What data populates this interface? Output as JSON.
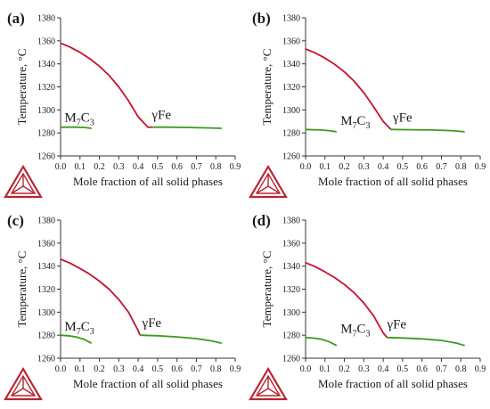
{
  "colors": {
    "liquid_solid": "#c8102e",
    "solid": "#3c9a1c",
    "axis": "#333333",
    "logo": "#b9242f"
  },
  "chart_data": [
    {
      "panel": "(a)",
      "type": "line",
      "xlabel": "Mole fraction of all solid phases",
      "ylabel": "Temperature, °C",
      "xlim": [
        0.0,
        0.9
      ],
      "ylim": [
        1260,
        1380
      ],
      "xticks": [
        "0.0",
        "0.1",
        "0.2",
        "0.3",
        "0.4",
        "0.5",
        "0.6",
        "0.7",
        "0.8",
        "0.9"
      ],
      "yticks": [
        "1260",
        "1280",
        "1300",
        "1320",
        "1340",
        "1360",
        "1380"
      ],
      "grid": false,
      "annotations": [
        {
          "text": "M",
          "sub": "7",
          "text2": "C",
          "sub2": "3",
          "at_x": 0.02,
          "at_y": 1290
        },
        {
          "text": "γFe",
          "at_x": 0.47,
          "at_y": 1292
        }
      ],
      "series": [
        {
          "color": "red",
          "x": [
            0.0,
            0.05,
            0.1,
            0.15,
            0.2,
            0.25,
            0.3,
            0.35,
            0.4,
            0.45,
            0.47
          ],
          "y": [
            1358,
            1354.5,
            1350,
            1344.5,
            1338,
            1330,
            1320,
            1308,
            1294,
            1285,
            1285
          ]
        },
        {
          "color": "green",
          "x": [
            0.0,
            0.04,
            0.08,
            0.12,
            0.16
          ],
          "y": [
            1285,
            1285,
            1285,
            1284.8,
            1284
          ]
        },
        {
          "color": "green",
          "x": [
            0.47,
            0.55,
            0.65,
            0.75,
            0.83
          ],
          "y": [
            1285,
            1285,
            1284.8,
            1284.4,
            1284
          ]
        }
      ]
    },
    {
      "panel": "(b)",
      "type": "line",
      "xlabel": "Mole fraction of all solid phases",
      "ylabel": "Temperature, °C",
      "xlim": [
        0.0,
        0.9
      ],
      "ylim": [
        1260,
        1380
      ],
      "xticks": [
        "0.0",
        "0.1",
        "0.2",
        "0.3",
        "0.4",
        "0.5",
        "0.6",
        "0.7",
        "0.8",
        "0.9"
      ],
      "yticks": [
        "1260",
        "1280",
        "1300",
        "1320",
        "1340",
        "1360",
        "1380"
      ],
      "grid": false,
      "annotations": [
        {
          "text": "M",
          "sub": "7",
          "text2": "C",
          "sub2": "3",
          "at_x": 0.18,
          "at_y": 1287
        },
        {
          "text": "γFe",
          "at_x": 0.45,
          "at_y": 1290
        }
      ],
      "series": [
        {
          "color": "red",
          "x": [
            0.0,
            0.05,
            0.1,
            0.15,
            0.2,
            0.25,
            0.3,
            0.35,
            0.4,
            0.44
          ],
          "y": [
            1353,
            1349.5,
            1345,
            1339.5,
            1333,
            1325,
            1315,
            1303,
            1290,
            1283
          ]
        },
        {
          "color": "green",
          "x": [
            0.0,
            0.04,
            0.08,
            0.12,
            0.16
          ],
          "y": [
            1283,
            1282.8,
            1282.5,
            1282,
            1281
          ]
        },
        {
          "color": "green",
          "x": [
            0.44,
            0.55,
            0.65,
            0.75,
            0.82
          ],
          "y": [
            1283,
            1282.8,
            1282.5,
            1282,
            1281
          ]
        }
      ]
    },
    {
      "panel": "(c)",
      "type": "line",
      "xlabel": "Mole fraction of all solid phases",
      "ylabel": "Temperature, °C",
      "xlim": [
        0.0,
        0.9
      ],
      "ylim": [
        1260,
        1380
      ],
      "xticks": [
        "0.0",
        "0.1",
        "0.2",
        "0.3",
        "0.4",
        "0.5",
        "0.6",
        "0.7",
        "0.8",
        "0.9"
      ],
      "yticks": [
        "1260",
        "1280",
        "1300",
        "1320",
        "1340",
        "1360",
        "1380"
      ],
      "grid": false,
      "annotations": [
        {
          "text": "M",
          "sub": "7",
          "text2": "C",
          "sub2": "3",
          "at_x": 0.02,
          "at_y": 1284
        },
        {
          "text": "γFe",
          "at_x": 0.42,
          "at_y": 1287
        }
      ],
      "series": [
        {
          "color": "red",
          "x": [
            0.0,
            0.05,
            0.1,
            0.15,
            0.2,
            0.25,
            0.3,
            0.35,
            0.4,
            0.41
          ],
          "y": [
            1346,
            1342.5,
            1338,
            1333,
            1327,
            1320,
            1311,
            1300,
            1284,
            1280
          ]
        },
        {
          "color": "green",
          "x": [
            0.0,
            0.04,
            0.08,
            0.12,
            0.16
          ],
          "y": [
            1280,
            1279.5,
            1278.5,
            1276.5,
            1273
          ]
        },
        {
          "color": "green",
          "x": [
            0.41,
            0.5,
            0.6,
            0.7,
            0.78,
            0.83
          ],
          "y": [
            1280,
            1279.5,
            1278.5,
            1277,
            1275,
            1273
          ]
        }
      ]
    },
    {
      "panel": "(d)",
      "type": "line",
      "xlabel": "Mole fraction of all solid phases",
      "ylabel": "Temperature, °C",
      "xlim": [
        0.0,
        0.9
      ],
      "ylim": [
        1260,
        1380
      ],
      "xticks": [
        "0.0",
        "0.1",
        "0.2",
        "0.3",
        "0.4",
        "0.5",
        "0.6",
        "0.7",
        "0.8",
        "0.9"
      ],
      "yticks": [
        "1260",
        "1280",
        "1300",
        "1320",
        "1340",
        "1360",
        "1380"
      ],
      "grid": false,
      "annotations": [
        {
          "text": "M",
          "sub": "7",
          "text2": "C",
          "sub2": "3",
          "at_x": 0.18,
          "at_y": 1282
        },
        {
          "text": "γFe",
          "at_x": 0.42,
          "at_y": 1286
        }
      ],
      "series": [
        {
          "color": "red",
          "x": [
            0.0,
            0.05,
            0.1,
            0.15,
            0.2,
            0.25,
            0.3,
            0.35,
            0.4,
            0.42
          ],
          "y": [
            1343,
            1339.5,
            1335,
            1330,
            1324,
            1317,
            1308,
            1297,
            1282,
            1278
          ]
        },
        {
          "color": "green",
          "x": [
            0.0,
            0.04,
            0.08,
            0.12,
            0.16
          ],
          "y": [
            1278,
            1277.5,
            1276.5,
            1274.5,
            1271
          ]
        },
        {
          "color": "green",
          "x": [
            0.42,
            0.5,
            0.6,
            0.7,
            0.78,
            0.82
          ],
          "y": [
            1278,
            1277.6,
            1276.8,
            1275.5,
            1273,
            1271
          ]
        }
      ]
    }
  ]
}
